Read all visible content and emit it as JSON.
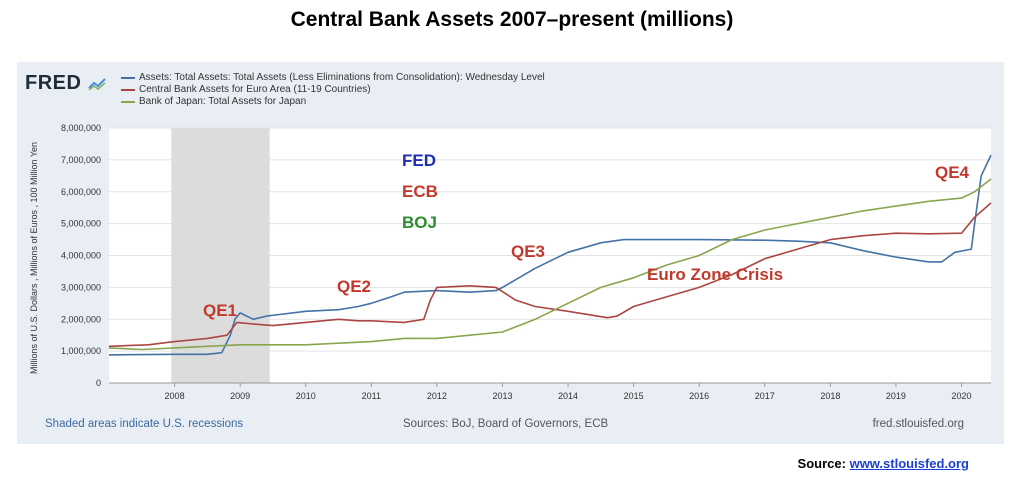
{
  "page_title": "Central Bank Assets 2007–present (millions)",
  "fred_logo": "FRED",
  "footer": {
    "left": "Shaded areas indicate U.S. recessions",
    "middle": "Sources: BoJ, Board of Governors, ECB",
    "right": "fred.stlouisfed.org"
  },
  "source": {
    "label": "Source:",
    "link_text": "www.stlouisfed.org"
  },
  "chart_data": {
    "type": "line",
    "title": "",
    "ylabel": "Millions of U.S. Dollars , Millions of Euros , 100 Million Yen",
    "xlim": [
      2007.0,
      2020.45
    ],
    "ylim": [
      0,
      8000000
    ],
    "xticks": [
      2008,
      2009,
      2010,
      2011,
      2012,
      2013,
      2014,
      2015,
      2016,
      2017,
      2018,
      2019,
      2020
    ],
    "yticks": [
      0,
      1000000,
      2000000,
      3000000,
      4000000,
      5000000,
      6000000,
      7000000,
      8000000
    ],
    "ytick_labels": [
      "0",
      "1,000,000",
      "2,000,000",
      "3,000,000",
      "4,000,000",
      "5,000,000",
      "6,000,000",
      "7,000,000",
      "8,000,000"
    ],
    "grid": "horizontal",
    "legend_position": "top-left",
    "recession": {
      "start": 2007.95,
      "end": 2009.45
    },
    "series": [
      {
        "name": "Assets: Total Assets: Total Assets (Less Eliminations from Consolidation): Wednesday Level",
        "color": "#4572a7",
        "x": [
          2007.0,
          2007.5,
          2008.0,
          2008.5,
          2008.72,
          2008.85,
          2008.92,
          2009.0,
          2009.2,
          2009.4,
          2009.6,
          2010.0,
          2010.5,
          2010.8,
          2011.0,
          2011.3,
          2011.5,
          2012.0,
          2012.5,
          2012.9,
          2013.0,
          2013.5,
          2014.0,
          2014.5,
          2014.85,
          2015.0,
          2016.0,
          2017.0,
          2017.5,
          2018.0,
          2018.5,
          2019.0,
          2019.5,
          2019.7,
          2019.9,
          2020.15,
          2020.2,
          2020.3,
          2020.45
        ],
        "y": [
          880000,
          890000,
          900000,
          900000,
          950000,
          1500000,
          2000000,
          2200000,
          2000000,
          2100000,
          2150000,
          2250000,
          2300000,
          2400000,
          2500000,
          2700000,
          2850000,
          2900000,
          2850000,
          2900000,
          3000000,
          3600000,
          4100000,
          4400000,
          4500000,
          4500000,
          4500000,
          4480000,
          4450000,
          4400000,
          4150000,
          3950000,
          3800000,
          3800000,
          4100000,
          4200000,
          5000000,
          6500000,
          7150000
        ]
      },
      {
        "name": "Central Bank Assets for Euro Area (11-19 Countries)",
        "color": "#aa4643",
        "x": [
          2007.0,
          2007.6,
          2008.0,
          2008.5,
          2008.8,
          2008.95,
          2009.2,
          2009.5,
          2010.0,
          2010.5,
          2010.8,
          2011.0,
          2011.5,
          2011.8,
          2011.9,
          2012.0,
          2012.5,
          2012.9,
          2013.2,
          2013.5,
          2014.0,
          2014.6,
          2014.75,
          2015.0,
          2015.5,
          2016.0,
          2016.5,
          2017.0,
          2017.5,
          2018.0,
          2018.5,
          2019.0,
          2019.5,
          2020.0,
          2020.2,
          2020.45
        ],
        "y": [
          1150000,
          1200000,
          1300000,
          1400000,
          1500000,
          1900000,
          1850000,
          1800000,
          1900000,
          2000000,
          1950000,
          1950000,
          1900000,
          2000000,
          2600000,
          3000000,
          3050000,
          3000000,
          2600000,
          2400000,
          2250000,
          2050000,
          2100000,
          2400000,
          2700000,
          3000000,
          3400000,
          3900000,
          4200000,
          4500000,
          4620000,
          4700000,
          4680000,
          4700000,
          5200000,
          5650000
        ]
      },
      {
        "name": "Bank of Japan: Total Assets for Japan",
        "color": "#89a54e",
        "x": [
          2007.0,
          2007.5,
          2008.0,
          2008.5,
          2009.0,
          2009.5,
          2010.0,
          2010.5,
          2011.0,
          2011.5,
          2012.0,
          2012.5,
          2013.0,
          2013.5,
          2014.0,
          2014.5,
          2015.0,
          2015.5,
          2016.0,
          2016.5,
          2017.0,
          2017.5,
          2018.0,
          2018.5,
          2019.0,
          2019.5,
          2020.0,
          2020.2,
          2020.45
        ],
        "y": [
          1100000,
          1050000,
          1100000,
          1150000,
          1200000,
          1200000,
          1200000,
          1250000,
          1300000,
          1400000,
          1400000,
          1500000,
          1600000,
          2000000,
          2500000,
          3000000,
          3300000,
          3700000,
          4000000,
          4500000,
          4800000,
          5000000,
          5200000,
          5400000,
          5550000,
          5700000,
          5800000,
          6000000,
          6400000
        ]
      }
    ],
    "annotations": [
      {
        "text": "FED",
        "color": "#1f2fb0"
      },
      {
        "text": "ECB",
        "color": "#c0392b"
      },
      {
        "text": "BOJ",
        "color": "#2e8b2e"
      },
      {
        "text": "QE1",
        "color": "#c0392b"
      },
      {
        "text": "QE2",
        "color": "#c0392b"
      },
      {
        "text": "QE3",
        "color": "#c0392b"
      },
      {
        "text": "QE4",
        "color": "#c0392b"
      },
      {
        "text": "Euro Zone Crisis",
        "color": "#c0392b"
      }
    ]
  }
}
